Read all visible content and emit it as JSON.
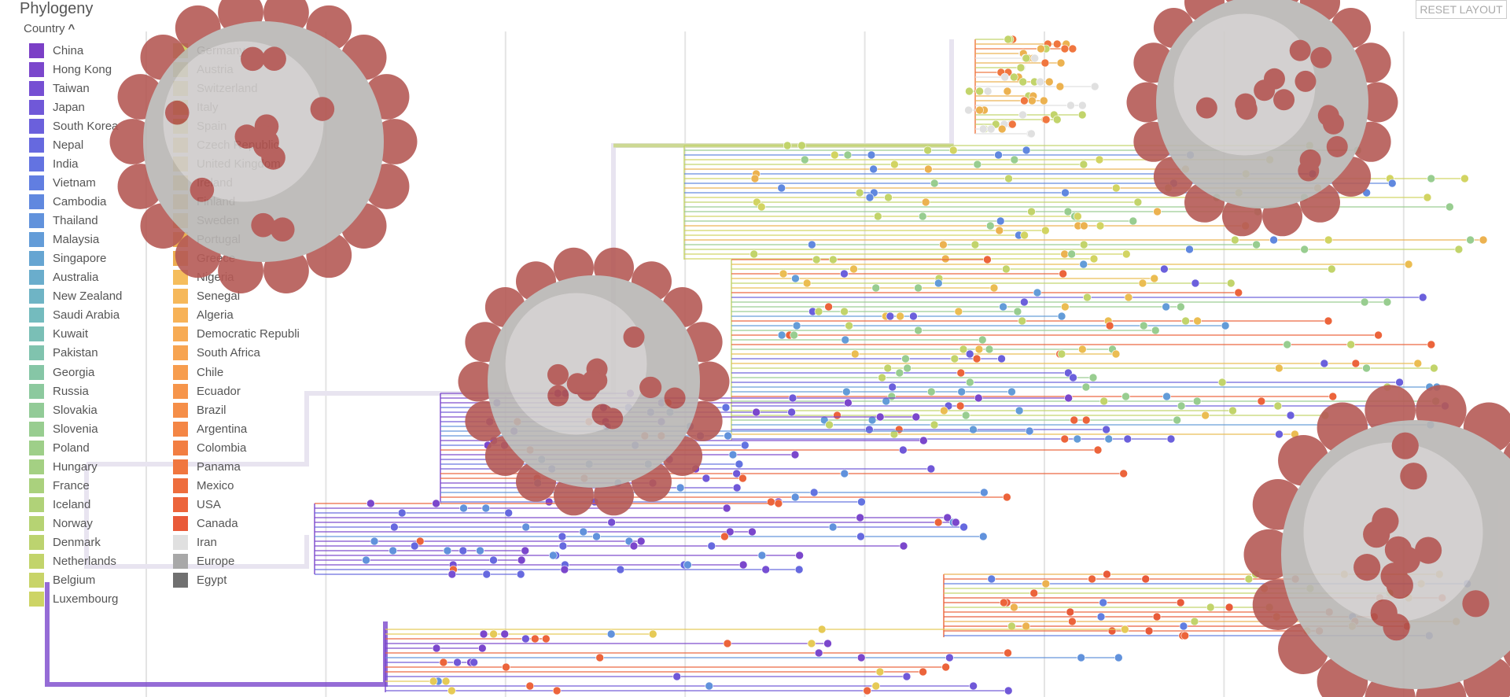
{
  "header": {
    "title": "Phylogeny",
    "filter_label": "Country"
  },
  "button": {
    "label": "RESET LAYOUT"
  },
  "legend": {
    "items": [
      {
        "label": "China",
        "color": "#7b3fc6"
      },
      {
        "label": "Hong Kong",
        "color": "#7b47cc"
      },
      {
        "label": "Taiwan",
        "color": "#764fd3"
      },
      {
        "label": "Japan",
        "color": "#7058d8"
      },
      {
        "label": "South Korea",
        "color": "#6b60dc"
      },
      {
        "label": "Nepal",
        "color": "#6669df"
      },
      {
        "label": "India",
        "color": "#6373e1"
      },
      {
        "label": "Vietnam",
        "color": "#617ee1"
      },
      {
        "label": "Cambodia",
        "color": "#6088df"
      },
      {
        "label": "Thailand",
        "color": "#6192dc"
      },
      {
        "label": "Malaysia",
        "color": "#639cd8"
      },
      {
        "label": "Singapore",
        "color": "#66a5d2"
      },
      {
        "label": "Australia",
        "color": "#6aadcc"
      },
      {
        "label": "New Zealand",
        "color": "#6fb4c5"
      },
      {
        "label": "Saudi Arabia",
        "color": "#74bbbe"
      },
      {
        "label": "Kuwait",
        "color": "#7abfb6"
      },
      {
        "label": "Pakistan",
        "color": "#80c3ae"
      },
      {
        "label": "Georgia",
        "color": "#86c6a6"
      },
      {
        "label": "Russia",
        "color": "#8cc99e"
      },
      {
        "label": "Slovakia",
        "color": "#92cb97"
      },
      {
        "label": "Slovenia",
        "color": "#98cd90"
      },
      {
        "label": "Poland",
        "color": "#9ecf89"
      },
      {
        "label": "Hungary",
        "color": "#a4d083"
      },
      {
        "label": "France",
        "color": "#aad17d"
      },
      {
        "label": "Iceland",
        "color": "#b0d278"
      },
      {
        "label": "Norway",
        "color": "#b6d373"
      },
      {
        "label": "Denmark",
        "color": "#bcd36f"
      },
      {
        "label": "Netherlands",
        "color": "#c2d46b"
      },
      {
        "label": "Belgium",
        "color": "#c8d468"
      },
      {
        "label": "Luxembourg",
        "color": "#cdd465"
      },
      {
        "label": "Germany",
        "color": "#d2d462"
      },
      {
        "label": "Austria",
        "color": "#d7d35f"
      },
      {
        "label": "Switzerland",
        "color": "#dcd25c"
      },
      {
        "label": "Italy",
        "color": "#e0d05a"
      },
      {
        "label": "Spain",
        "color": "#e3cd58"
      },
      {
        "label": "Czech Republic",
        "color": "#e6ca56"
      },
      {
        "label": "United Kingdom",
        "color": "#e8c654"
      },
      {
        "label": "Ireland",
        "color": "#eac253"
      },
      {
        "label": "Finland",
        "color": "#ebbd52"
      },
      {
        "label": "Sweden",
        "color": "#ecb851"
      },
      {
        "label": "Portugal",
        "color": "#ecb250"
      },
      {
        "label": "Greece",
        "color": "#ecac4f"
      },
      {
        "label": "Nigeria",
        "color": "#f5bd5c"
      },
      {
        "label": "Senegal",
        "color": "#f6b85a"
      },
      {
        "label": "Algeria",
        "color": "#f7b257"
      },
      {
        "label": "Democratic Republi",
        "color": "#f7ab54"
      },
      {
        "label": "South Africa",
        "color": "#f7a451"
      },
      {
        "label": "Chile",
        "color": "#f79d4e"
      },
      {
        "label": "Ecuador",
        "color": "#f6954b"
      },
      {
        "label": "Brazil",
        "color": "#f58e48"
      },
      {
        "label": "Argentina",
        "color": "#f48645"
      },
      {
        "label": "Colombia",
        "color": "#f27e42"
      },
      {
        "label": "Panama",
        "color": "#f0763f"
      },
      {
        "label": "Mexico",
        "color": "#ee6d3d"
      },
      {
        "label": "USA",
        "color": "#ec643b"
      },
      {
        "label": "Canada",
        "color": "#e95a39"
      },
      {
        "label": "Iran",
        "color": "#e0e0e0"
      },
      {
        "label": "Europe",
        "color": "#a8a8a8"
      },
      {
        "label": "Egypt",
        "color": "#707070"
      }
    ]
  }
}
